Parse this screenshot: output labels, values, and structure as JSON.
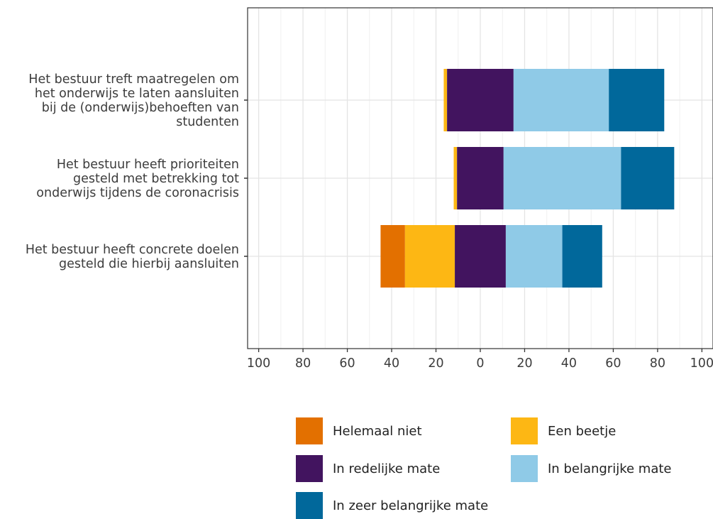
{
  "chart_data": {
    "type": "bar",
    "orientation": "horizontal",
    "stacked": "diverging",
    "categories": [
      [
        "Het bestuur treft maatregelen om",
        "het onderwijs te laten aansluiten",
        "bij de (onderwijs)behoeften van",
        "studenten"
      ],
      [
        "Het bestuur heeft prioriteiten",
        "gesteld met betrekking tot",
        "onderwijs tijdens de coronacrisis"
      ],
      [
        "Het bestuur heeft concrete doelen",
        "gesteld die hierbij aansluiten"
      ]
    ],
    "series": [
      {
        "name": "Helemaal niet",
        "color": "#e37000",
        "side": "negative",
        "values": [
          0,
          0,
          11
        ]
      },
      {
        "name": "Een beetje",
        "color": "#fdb714",
        "side": "negative",
        "values": [
          1.5,
          1.5,
          22.5
        ]
      },
      {
        "name": "In redelijke mate",
        "color": "#42145f",
        "side": "split",
        "values": [
          30,
          21,
          23
        ]
      },
      {
        "name": "In belangrijke mate",
        "color": "#8fcae7",
        "side": "positive",
        "values": [
          43,
          53,
          25.5
        ]
      },
      {
        "name": "In zeer belangrijke mate",
        "color": "#01689b",
        "side": "positive",
        "values": [
          25,
          24,
          18
        ]
      }
    ],
    "xlim": [
      -105,
      105
    ],
    "xticks": [
      -100,
      -80,
      -60,
      -40,
      -20,
      0,
      20,
      40,
      60,
      80,
      100
    ],
    "xtick_labels": [
      "100",
      "80",
      "60",
      "40",
      "20",
      "0",
      "20",
      "40",
      "60",
      "80",
      "100"
    ],
    "grid": true,
    "legend": "bottom",
    "title": "",
    "xlabel": "",
    "ylabel": ""
  }
}
